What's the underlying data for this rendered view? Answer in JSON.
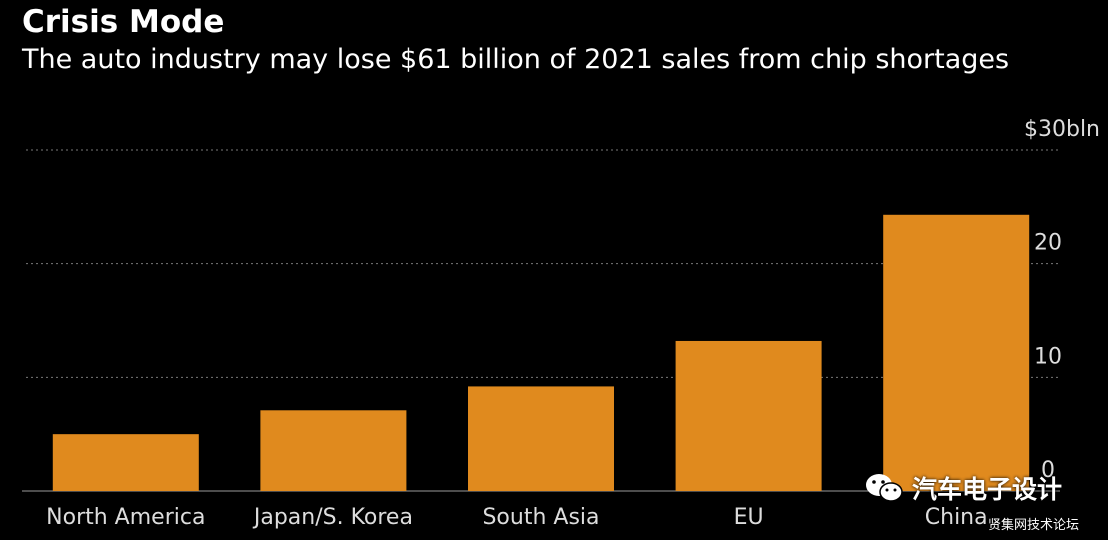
{
  "title": "Crisis Mode",
  "subtitle": "The auto industry may lose $61 billion of 2021 sales from chip shortages",
  "colors": {
    "bar": "#e08a1e",
    "background": "#000000",
    "text": "#dddddd",
    "grid": "#7a7a7a"
  },
  "chart_data": {
    "type": "bar",
    "categories": [
      "North America",
      "Japan/S. Korea",
      "South Asia",
      "EU",
      "China"
    ],
    "values": [
      5,
      7.1,
      9.2,
      13.2,
      24.3
    ],
    "ylim": [
      0,
      30
    ],
    "yticks": [
      0,
      10,
      20,
      30
    ],
    "ytick_labels": [
      "0",
      "10",
      "20",
      "$30bln"
    ],
    "y_axis_position": "right",
    "grid": true,
    "legend": "none"
  },
  "watermark": {
    "logo_icon": "wechat-icon",
    "text": "汽车电子设计",
    "sub": "贤集网技术论坛"
  }
}
